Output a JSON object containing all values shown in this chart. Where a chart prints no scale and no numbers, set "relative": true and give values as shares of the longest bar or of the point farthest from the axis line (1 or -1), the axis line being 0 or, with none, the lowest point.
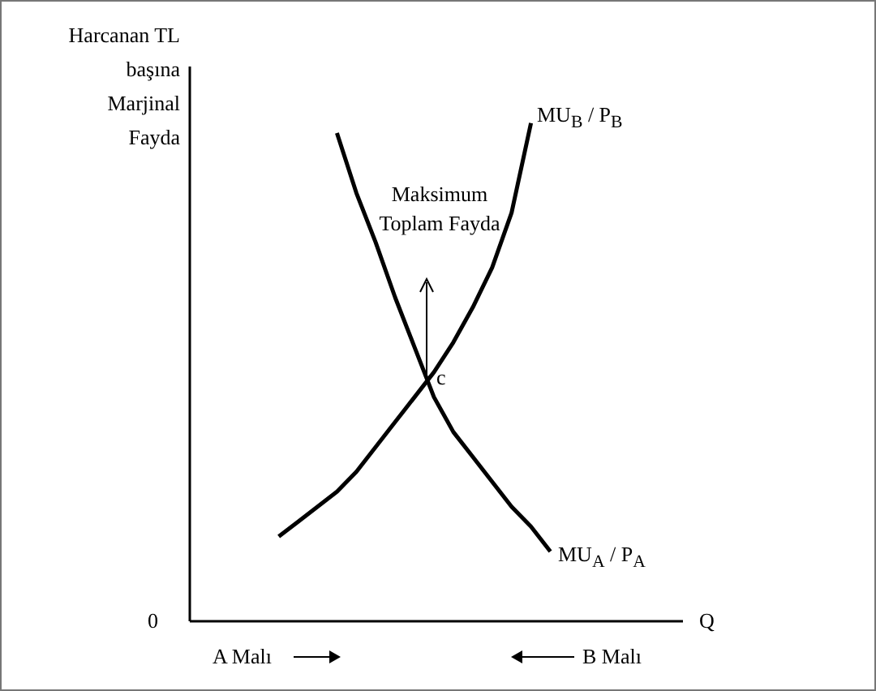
{
  "chart_data": {
    "type": "line",
    "relative": true,
    "ylabel": "Harcanan TL başına Marjinal Fayda",
    "categories": [
      null,
      null,
      null,
      null,
      null,
      null,
      null,
      null,
      null,
      null,
      null,
      null,
      null,
      null,
      null
    ],
    "series": [
      {
        "name": "MU$_{B}$ / P$_{B}$",
        "color": "#000000",
        "values": [
          0.17,
          0.2,
          0.23,
          0.26,
          0.3,
          0.35,
          0.4,
          0.45,
          0.5,
          0.56,
          0.63,
          0.71,
          0.82,
          1,
          null
        ]
      },
      {
        "name": "MU$_{A}$ / P$_{A}$",
        "color": "#000000",
        "values": [
          null,
          null,
          null,
          0.98,
          0.86,
          0.76,
          0.65,
          0.55,
          0.45,
          0.38,
          0.33,
          0.28,
          0.23,
          0.19,
          0.14
        ]
      }
    ],
    "annotations": [
      "Maksimum Toplam Fayda",
      "c",
      "0",
      "Q",
      "A Malı",
      "B Malı"
    ],
    "legend": false,
    "marker": "none",
    "line_style": "solid",
    "grid": false
  }
}
